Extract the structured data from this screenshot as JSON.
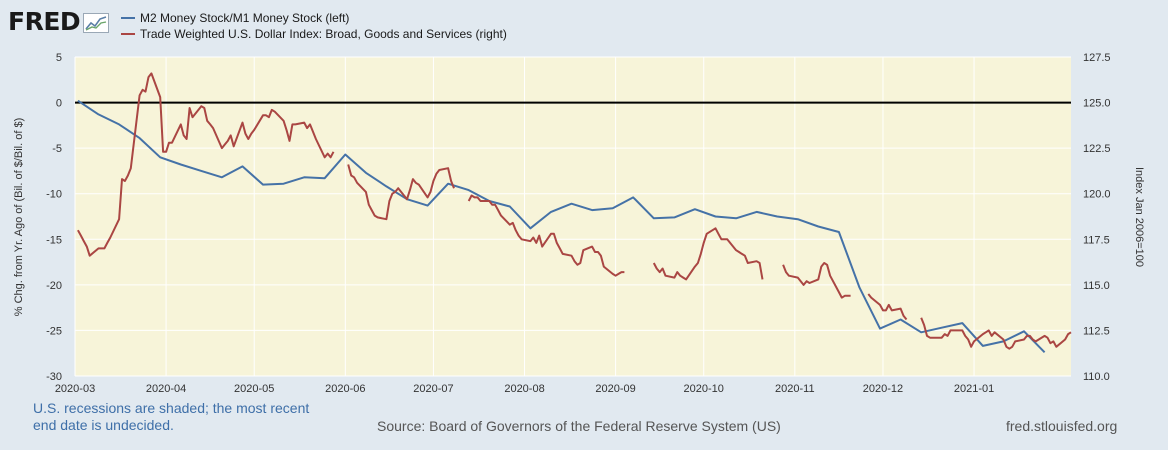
{
  "header": {
    "logo_text": "FRED",
    "logo_icon": "line-graph-icon"
  },
  "chart_data": {
    "type": "line",
    "legend_placement": "top-left",
    "grid": true,
    "colors": {
      "m2m1": "#4572a7",
      "twexb": "#aa4643",
      "plot_bg": "#f7f4d9",
      "page_bg": "#e1e9f0"
    },
    "xlabel": "",
    "x_ticks": [
      "2020-03",
      "2020-04",
      "2020-05",
      "2020-06",
      "2020-07",
      "2020-08",
      "2020-09",
      "2020-10",
      "2020-11",
      "2020-12",
      "2021-01"
    ],
    "xlim": [
      "2020-03-01",
      "2021-02-03"
    ],
    "y_left": {
      "label": "% Chg. from Yr. Ago of (Bil. of $/Bil. of $)",
      "ticks": [
        "5",
        "0",
        "-5",
        "-10",
        "-15",
        "-20",
        "-25",
        "-30"
      ],
      "range": [
        -30,
        5
      ],
      "reference_line": 0
    },
    "y_right": {
      "label": "Index Jan 2006=100",
      "ticks": [
        "127.5",
        "125.0",
        "122.5",
        "120.0",
        "117.5",
        "115.0",
        "112.5",
        "110.0"
      ],
      "range": [
        110,
        127.5
      ]
    },
    "series": [
      {
        "name": "M2 Money Stock/M1 Money Stock (left)",
        "axis": "left",
        "x": [
          "2020-03-02",
          "2020-03-09",
          "2020-03-16",
          "2020-03-23",
          "2020-03-30",
          "2020-04-06",
          "2020-04-13",
          "2020-04-20",
          "2020-04-27",
          "2020-05-04",
          "2020-05-11",
          "2020-05-18",
          "2020-05-25",
          "2020-06-01",
          "2020-06-08",
          "2020-06-15",
          "2020-06-22",
          "2020-06-29",
          "2020-07-06",
          "2020-07-13",
          "2020-07-20",
          "2020-07-27",
          "2020-08-03",
          "2020-08-10",
          "2020-08-17",
          "2020-08-24",
          "2020-08-31",
          "2020-09-07",
          "2020-09-14",
          "2020-09-21",
          "2020-09-28",
          "2020-10-05",
          "2020-10-12",
          "2020-10-19",
          "2020-10-26",
          "2020-11-02",
          "2020-11-09",
          "2020-11-16",
          "2020-11-23",
          "2020-11-30",
          "2020-12-07",
          "2020-12-14",
          "2020-12-21",
          "2020-12-28",
          "2021-01-04",
          "2021-01-11",
          "2021-01-18",
          "2021-01-25"
        ],
        "values": [
          0.2,
          -1.3,
          -2.4,
          -3.9,
          -6.0,
          -6.8,
          -7.5,
          -8.2,
          -7.0,
          -9.0,
          -8.9,
          -8.2,
          -8.3,
          -5.7,
          -7.7,
          -9.2,
          -10.6,
          -11.3,
          -8.9,
          -9.6,
          -10.8,
          -11.4,
          -13.8,
          -12.0,
          -11.1,
          -11.8,
          -11.6,
          -10.4,
          -12.7,
          -12.6,
          -11.7,
          -12.5,
          -12.7,
          -12.0,
          -12.5,
          -12.8,
          -13.6,
          -14.2,
          -20.3,
          -24.8,
          -23.8,
          -25.2,
          -24.7,
          -24.2,
          -26.7,
          -26.2,
          -25.1,
          -27.4
        ]
      },
      {
        "name": "Trade Weighted U.S. Dollar Index: Broad, Goods and Services (right)",
        "axis": "right",
        "segments": [
          {
            "x": [
              "2020-03-02",
              "2020-03-03",
              "2020-03-04",
              "2020-03-05",
              "2020-03-06",
              "2020-03-09",
              "2020-03-10",
              "2020-03-11",
              "2020-03-12",
              "2020-03-13",
              "2020-03-16",
              "2020-03-17",
              "2020-03-18",
              "2020-03-19",
              "2020-03-20",
              "2020-03-23",
              "2020-03-24",
              "2020-03-25",
              "2020-03-26",
              "2020-03-27",
              "2020-03-30",
              "2020-03-31",
              "2020-04-01",
              "2020-04-02",
              "2020-04-03",
              "2020-04-06",
              "2020-04-07",
              "2020-04-08",
              "2020-04-09",
              "2020-04-10",
              "2020-04-13",
              "2020-04-14",
              "2020-04-15",
              "2020-04-16",
              "2020-04-17",
              "2020-04-20",
              "2020-04-21",
              "2020-04-22",
              "2020-04-23",
              "2020-04-24",
              "2020-04-27",
              "2020-04-28",
              "2020-04-29",
              "2020-04-30",
              "2020-05-01",
              "2020-05-04",
              "2020-05-05",
              "2020-05-06",
              "2020-05-07",
              "2020-05-08",
              "2020-05-11",
              "2020-05-12",
              "2020-05-13",
              "2020-05-14",
              "2020-05-15",
              "2020-05-18",
              "2020-05-19",
              "2020-05-20",
              "2020-05-21",
              "2020-05-22"
            ],
            "values": [
              118.0,
              117.7,
              117.4,
              117.1,
              116.6,
              117.0,
              117.0,
              117.0,
              117.3,
              117.6,
              118.6,
              120.8,
              120.7,
              121.0,
              121.4,
              125.4,
              125.7,
              125.6,
              126.4,
              126.6,
              125.3,
              122.3,
              122.3,
              122.8,
              122.8,
              123.8,
              123.2,
              123.0,
              124.7,
              124.2,
              124.8,
              124.7,
              124.0,
              123.8,
              123.6,
              122.5,
              122.7,
              122.9,
              123.2,
              122.6,
              123.9,
              123.3,
              123.0,
              123.3,
              123.5,
              124.3,
              124.3,
              124.2,
              124.6,
              124.5,
              124.0,
              123.5,
              122.9,
              123.8,
              123.8,
              123.9,
              123.6,
              123.8,
              123.4,
              123.0
            ]
          }
        ]
      }
    ],
    "source": "Source: Board of Governors of the Federal Reserve System (US)",
    "note": "U.S. recessions are shaded; the most recent end date is undecided.",
    "url": "fred.stlouisfed.org"
  },
  "twexb_points": [
    [
      "2020-05-25",
      122.0
    ],
    [
      "2020-05-26",
      122.2
    ],
    [
      "2020-05-27",
      122.0
    ],
    [
      "2020-05-28",
      122.3
    ],
    [
      "2020-06-02",
      121.6
    ],
    [
      "2020-06-03",
      121.0
    ],
    [
      "2020-06-04",
      120.9
    ],
    [
      "2020-06-05",
      120.6
    ],
    [
      "2020-06-08",
      120.1
    ],
    [
      "2020-06-09",
      119.4
    ],
    [
      "2020-06-10",
      119.1
    ],
    [
      "2020-06-11",
      118.8
    ],
    [
      "2020-06-12",
      118.7
    ],
    [
      "2020-06-15",
      118.6
    ],
    [
      "2020-06-16",
      119.6
    ],
    [
      "2020-06-17",
      120.0
    ],
    [
      "2020-06-18",
      120.1
    ],
    [
      "2020-06-19",
      120.3
    ],
    [
      "2020-06-22",
      119.7
    ],
    [
      "2020-06-23",
      120.2
    ],
    [
      "2020-06-24",
      120.8
    ],
    [
      "2020-06-25",
      120.6
    ],
    [
      "2020-06-26",
      120.5
    ],
    [
      "2020-06-29",
      119.8
    ],
    [
      "2020-06-30",
      120.1
    ],
    [
      "2020-07-01",
      120.7
    ],
    [
      "2020-07-02",
      121.1
    ],
    [
      "2020-07-03",
      121.3
    ],
    [
      "2020-07-06",
      121.4
    ],
    [
      "2020-07-07",
      120.7
    ],
    [
      "2020-07-08",
      120.3
    ],
    [
      "2020-07-13",
      119.6
    ],
    [
      "2020-07-14",
      119.9
    ],
    [
      "2020-07-15",
      119.8
    ],
    [
      "2020-07-16",
      119.8
    ],
    [
      "2020-07-17",
      119.6
    ],
    [
      "2020-07-20",
      119.6
    ],
    [
      "2020-07-21",
      119.4
    ],
    [
      "2020-07-22",
      119.4
    ],
    [
      "2020-07-23",
      119.1
    ],
    [
      "2020-07-24",
      118.8
    ],
    [
      "2020-07-27",
      118.3
    ],
    [
      "2020-07-28",
      118.4
    ],
    [
      "2020-07-29",
      118.0
    ],
    [
      "2020-07-30",
      117.7
    ],
    [
      "2020-07-31",
      117.5
    ],
    [
      "2020-08-03",
      117.4
    ],
    [
      "2020-08-04",
      117.6
    ],
    [
      "2020-08-05",
      117.3
    ],
    [
      "2020-08-06",
      117.7
    ],
    [
      "2020-08-07",
      117.1
    ],
    [
      "2020-08-10",
      117.8
    ],
    [
      "2020-08-11",
      117.8
    ],
    [
      "2020-08-12",
      117.3
    ],
    [
      "2020-08-13",
      117.0
    ],
    [
      "2020-08-14",
      116.7
    ],
    [
      "2020-08-17",
      116.6
    ],
    [
      "2020-08-18",
      116.3
    ],
    [
      "2020-08-19",
      116.1
    ],
    [
      "2020-08-20",
      116.2
    ],
    [
      "2020-08-21",
      116.9
    ],
    [
      "2020-08-24",
      117.1
    ],
    [
      "2020-08-25",
      116.8
    ],
    [
      "2020-08-26",
      116.8
    ],
    [
      "2020-08-27",
      116.6
    ],
    [
      "2020-08-28",
      116.0
    ],
    [
      "2020-08-31",
      115.6
    ],
    [
      "2020-09-01",
      115.5
    ],
    [
      "2020-09-02",
      115.6
    ],
    [
      "2020-09-03",
      115.7
    ],
    [
      "2020-09-04",
      115.7
    ],
    [
      "2020-09-14",
      116.2
    ],
    [
      "2020-09-15",
      115.9
    ],
    [
      "2020-09-16",
      115.7
    ],
    [
      "2020-09-17",
      115.9
    ],
    [
      "2020-09-18",
      115.5
    ],
    [
      "2020-09-21",
      115.4
    ],
    [
      "2020-09-22",
      115.7
    ],
    [
      "2020-09-23",
      115.5
    ],
    [
      "2020-09-24",
      115.4
    ],
    [
      "2020-09-25",
      115.3
    ],
    [
      "2020-09-28",
      116.0
    ],
    [
      "2020-09-29",
      116.2
    ],
    [
      "2020-09-30",
      116.7
    ],
    [
      "2020-10-01",
      117.3
    ],
    [
      "2020-10-02",
      117.8
    ],
    [
      "2020-10-05",
      118.1
    ],
    [
      "2020-10-06",
      117.8
    ],
    [
      "2020-10-07",
      117.5
    ],
    [
      "2020-10-08",
      117.5
    ],
    [
      "2020-10-09",
      117.5
    ],
    [
      "2020-10-12",
      116.9
    ],
    [
      "2020-10-13",
      116.8
    ],
    [
      "2020-10-14",
      116.7
    ],
    [
      "2020-10-15",
      116.6
    ],
    [
      "2020-10-16",
      116.2
    ],
    [
      "2020-10-19",
      116.3
    ],
    [
      "2020-10-20",
      116.2
    ],
    [
      "2020-10-21",
      115.3
    ],
    [
      "2020-10-28",
      116.1
    ],
    [
      "2020-10-29",
      115.7
    ],
    [
      "2020-10-30",
      115.5
    ],
    [
      "2020-11-02",
      115.4
    ],
    [
      "2020-11-03",
      115.2
    ],
    [
      "2020-11-04",
      115.0
    ],
    [
      "2020-11-05",
      115.2
    ],
    [
      "2020-11-06",
      115.1
    ],
    [
      "2020-11-09",
      115.3
    ],
    [
      "2020-11-10",
      116.0
    ],
    [
      "2020-11-11",
      116.2
    ],
    [
      "2020-11-12",
      116.1
    ],
    [
      "2020-11-13",
      115.5
    ],
    [
      "2020-11-16",
      114.6
    ],
    [
      "2020-11-17",
      114.3
    ],
    [
      "2020-11-18",
      114.4
    ],
    [
      "2020-11-19",
      114.4
    ],
    [
      "2020-11-20",
      114.4
    ],
    [
      "2020-11-26",
      114.5
    ],
    [
      "2020-11-27",
      114.3
    ],
    [
      "2020-11-30",
      113.9
    ],
    [
      "2020-12-01",
      113.6
    ],
    [
      "2020-12-02",
      113.6
    ],
    [
      "2020-12-03",
      113.9
    ],
    [
      "2020-12-04",
      113.6
    ],
    [
      "2020-12-07",
      113.7
    ],
    [
      "2020-12-08",
      113.3
    ],
    [
      "2020-12-09",
      113.1
    ],
    [
      "2020-12-14",
      113.2
    ],
    [
      "2020-12-15",
      112.8
    ],
    [
      "2020-12-16",
      112.2
    ],
    [
      "2020-12-17",
      112.1
    ],
    [
      "2020-12-18",
      112.1
    ],
    [
      "2020-12-21",
      112.1
    ],
    [
      "2020-12-22",
      112.3
    ],
    [
      "2020-12-23",
      112.2
    ],
    [
      "2020-12-24",
      112.5
    ],
    [
      "2020-12-28",
      112.5
    ],
    [
      "2020-12-29",
      112.2
    ],
    [
      "2020-12-30",
      112.0
    ],
    [
      "2020-12-31",
      111.6
    ],
    [
      "2021-01-01",
      111.9
    ],
    [
      "2021-01-04",
      112.3
    ],
    [
      "2021-01-05",
      112.4
    ],
    [
      "2021-01-06",
      112.5
    ],
    [
      "2021-01-07",
      112.2
    ],
    [
      "2021-01-08",
      112.4
    ],
    [
      "2021-01-11",
      112.0
    ],
    [
      "2021-01-12",
      111.6
    ],
    [
      "2021-01-13",
      111.5
    ],
    [
      "2021-01-14",
      111.6
    ],
    [
      "2021-01-15",
      111.9
    ],
    [
      "2021-01-18",
      112.0
    ],
    [
      "2021-01-19",
      112.2
    ],
    [
      "2021-01-20",
      112.2
    ],
    [
      "2021-01-21",
      112.0
    ],
    [
      "2021-01-22",
      111.9
    ],
    [
      "2021-01-25",
      112.2
    ],
    [
      "2021-01-26",
      112.1
    ],
    [
      "2021-01-27",
      111.8
    ],
    [
      "2021-01-28",
      111.9
    ],
    [
      "2021-01-29",
      111.6
    ],
    [
      "2021-02-01",
      112.0
    ],
    [
      "2021-02-02",
      112.3
    ],
    [
      "2021-02-03",
      112.4
    ]
  ]
}
